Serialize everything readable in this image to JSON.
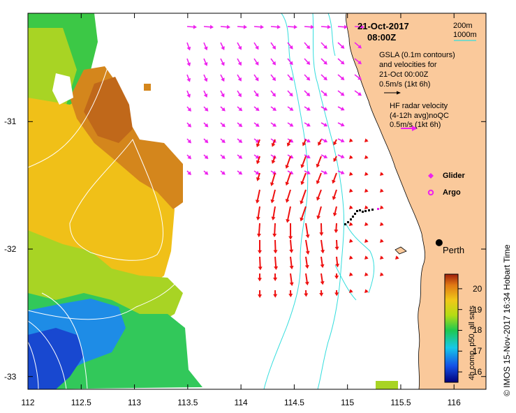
{
  "figure": {
    "date": "21-Oct-2017",
    "time": "08:00Z",
    "depth_labels": [
      "200m",
      "1000m"
    ],
    "gsla_text": [
      "GSLA (0.1m contours)",
      "and velocities for",
      "21-Oct 00:00Z"
    ],
    "gsla_scale": "0.5m/s (1kt 6h)",
    "hf_text": [
      "HF radar velocity",
      "(4-12h avg)noQC"
    ],
    "hf_scale": "0.5m/s (1kt 6h)",
    "glider_label": "Glider",
    "argo_label": "Argo",
    "city_label": "Perth",
    "colorbar_title": "4h comp, p50, all sats",
    "credit": "©  IMOS 15-Nov-2017 16:34 Hobart Time"
  },
  "chart_data": {
    "type": "map",
    "xlim": [
      112,
      116.3
    ],
    "ylim": [
      -33.1,
      -30.15
    ],
    "x_ticks": [
      112,
      112.5,
      113,
      113.5,
      114,
      114.5,
      115,
      115.5,
      116
    ],
    "x_tick_labels": [
      "112",
      "112.5",
      "113",
      "113.5",
      "114",
      "114.5",
      "115",
      "115.5",
      "116"
    ],
    "y_ticks": [
      -31,
      -32,
      -33
    ],
    "y_tick_labels": [
      "-31",
      "-32",
      "-33"
    ],
    "colorbar": {
      "min": 15.5,
      "max": 20.7,
      "ticks": [
        16,
        17,
        18,
        19,
        20
      ],
      "labels": [
        "16",
        "17",
        "18",
        "19",
        "20"
      ]
    },
    "perth": {
      "lon": 115.86,
      "lat": -31.95
    },
    "colors": {
      "land": "#fac99b",
      "hf_arrow": "#ee1111",
      "gsla_arrow": "#ee22ee",
      "isobath": "#33dddd",
      "glider": "#000000"
    }
  }
}
